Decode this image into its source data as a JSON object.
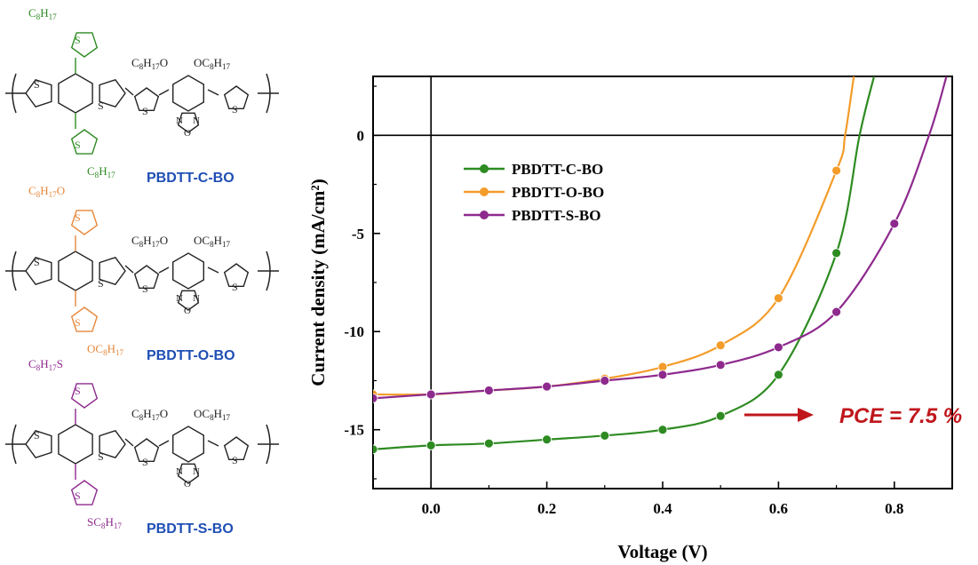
{
  "molecules": [
    {
      "name": "PBDTT-C-BO",
      "color": "#2e8b22",
      "side_top": "C8H17",
      "side_bottom": "C8H17"
    },
    {
      "name": "PBDTT-O-BO",
      "color": "#e8873a",
      "side_top": "C8H17O",
      "side_bottom": "OC8H17"
    },
    {
      "name": "PBDTT-S-BO",
      "color": "#8e2a8e",
      "side_top": "C8H17S",
      "side_bottom": "SC8H17"
    }
  ],
  "backbone": {
    "alkoxy_left": "C8H17O",
    "alkoxy_right": "OC8H17",
    "ring_atoms": [
      "S",
      "N",
      "O",
      "N"
    ]
  },
  "chart_data": {
    "type": "line",
    "xlabel": "Voltage (V)",
    "ylabel": "Current density (mA/cm²)",
    "xlim": [
      -0.1,
      0.9
    ],
    "ylim": [
      -18,
      3
    ],
    "xticks": [
      "0.0",
      "0.2",
      "0.4",
      "0.6",
      "0.8"
    ],
    "yticks": [
      "0",
      "-5",
      "-10",
      "-15"
    ],
    "legend_position": "upper-left",
    "series": [
      {
        "name": "PBDTT-C-BO",
        "color": "#2e8b22",
        "x": [
          -0.1,
          0.0,
          0.1,
          0.2,
          0.3,
          0.4,
          0.5,
          0.6,
          0.7,
          0.74,
          0.765
        ],
        "y": [
          -16.0,
          -15.8,
          -15.7,
          -15.5,
          -15.3,
          -15.0,
          -14.3,
          -12.2,
          -6.0,
          0.0,
          3.0
        ],
        "markers": [
          0,
          1,
          2,
          3,
          4,
          5,
          6,
          7,
          8
        ]
      },
      {
        "name": "PBDTT-O-BO",
        "color": "#f39c2a",
        "x": [
          -0.1,
          0.0,
          0.1,
          0.2,
          0.3,
          0.4,
          0.5,
          0.6,
          0.7,
          0.715,
          0.73
        ],
        "y": [
          -13.2,
          -13.2,
          -13.0,
          -12.8,
          -12.4,
          -11.8,
          -10.7,
          -8.3,
          -1.8,
          0.0,
          3.0
        ],
        "markers": [
          0,
          1,
          2,
          3,
          4,
          5,
          6,
          7,
          8
        ]
      },
      {
        "name": "PBDTT-S-BO",
        "color": "#8e2a8e",
        "x": [
          -0.1,
          0.0,
          0.1,
          0.2,
          0.3,
          0.4,
          0.5,
          0.6,
          0.7,
          0.8,
          0.86,
          0.89
        ],
        "y": [
          -13.4,
          -13.2,
          -13.0,
          -12.8,
          -12.5,
          -12.2,
          -11.7,
          -10.8,
          -9.0,
          -4.5,
          0.0,
          3.0
        ],
        "markers": [
          0,
          1,
          2,
          3,
          4,
          5,
          6,
          7,
          8,
          9
        ]
      }
    ],
    "annotation": {
      "text": "PCE = 7.5 %",
      "color": "#c0161b"
    }
  }
}
